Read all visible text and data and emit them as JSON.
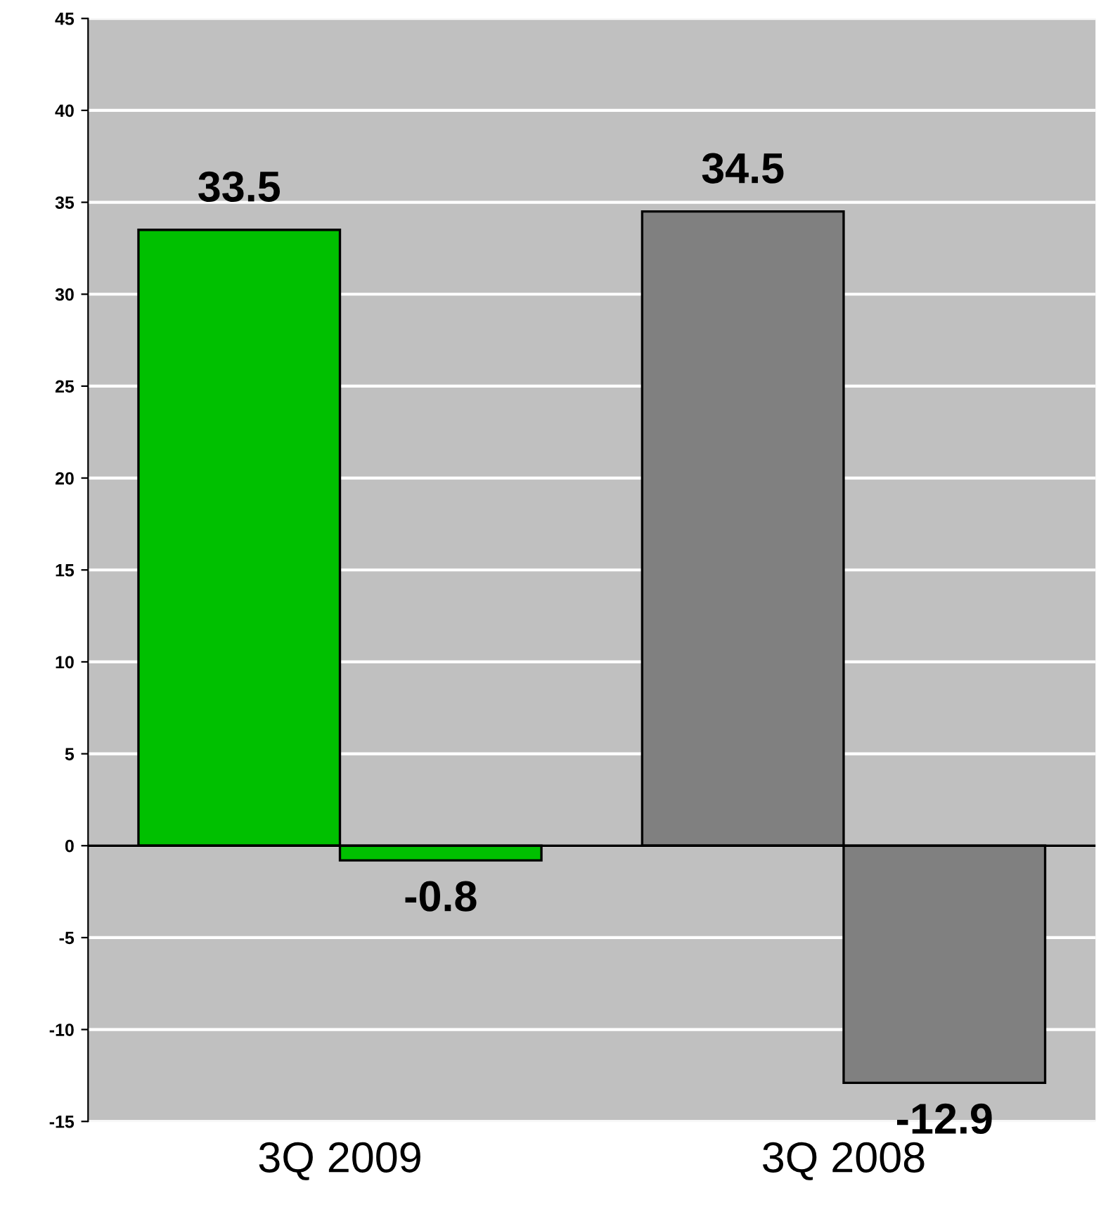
{
  "chart_data": {
    "type": "bar",
    "categories": [
      "3Q 2009",
      "3Q 2008"
    ],
    "series": [
      {
        "colors": [
          "#00c000",
          "#808080"
        ],
        "values": [
          33.5,
          34.5
        ]
      },
      {
        "colors": [
          "#00c000",
          "#808080"
        ],
        "values": [
          -0.8,
          -12.9
        ]
      }
    ],
    "ylim": [
      -15,
      45
    ],
    "yticks": [
      -15,
      -10,
      -5,
      0,
      5,
      10,
      15,
      20,
      25,
      30,
      35,
      40,
      45
    ],
    "grid": "y",
    "data_labels": true,
    "ref_lines": [
      {
        "axis": "y",
        "value": 0,
        "color": "#000000"
      }
    ]
  }
}
